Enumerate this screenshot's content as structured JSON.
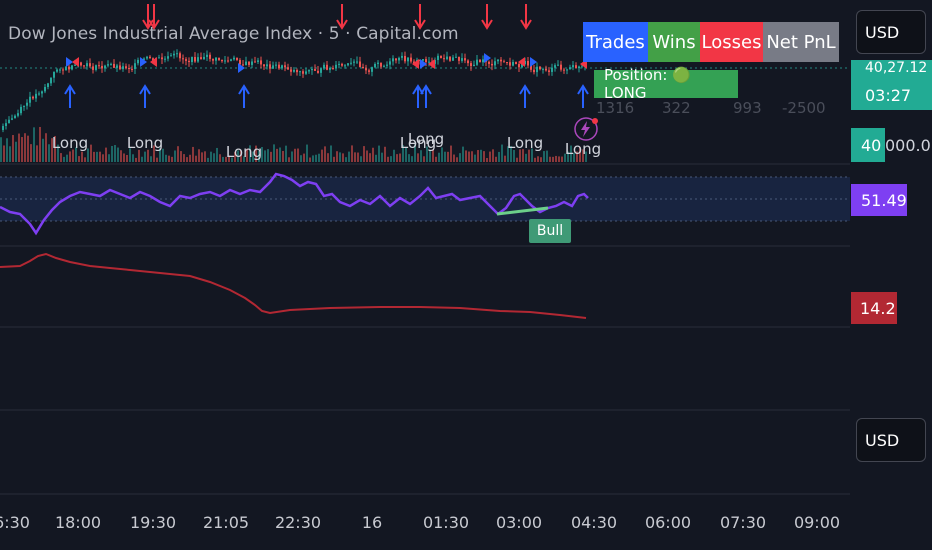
{
  "header": {
    "title": "Dow Jones Industrial Average Index · 5 · Capital.com"
  },
  "stats_table": {
    "headers": [
      {
        "label": "Trades",
        "color": "#2962ff"
      },
      {
        "label": "Wins",
        "color": "#43a047"
      },
      {
        "label": "Losses",
        "color": "#f23645"
      },
      {
        "label": "Net PnL",
        "color": "#787b86"
      }
    ],
    "values": [
      "1316",
      "322",
      "993",
      "-2500"
    ],
    "position_label": "Position: 🟢 LONG"
  },
  "price_scale": {
    "currency_top": "USD",
    "currency_bottom": "USD",
    "price_partial": "40,27.12",
    "countdown": "03:27",
    "volume_value": "40",
    "volume_suffix": "000.0",
    "rsi_value": "51.49",
    "lower_value": "14.2"
  },
  "signal_labels": [
    "Long",
    "Long",
    "Long",
    "Long",
    "Long",
    "Long",
    "Long",
    "Long"
  ],
  "divergence_label": "Bull",
  "time_axis": [
    "6:30",
    "18:00",
    "19:30",
    "21:05",
    "22:30",
    "16",
    "01:30",
    "03:00",
    "04:30",
    "06:00",
    "07:30",
    "09:00"
  ],
  "colors": {
    "background": "#131722",
    "up": "#26a69a",
    "down": "#ef5350",
    "rsi_line": "#7e3ff2",
    "lower_line": "#b22833",
    "signal_up": "#2962ff",
    "signal_down": "#f23645"
  },
  "icons": [
    "lightning-icon",
    "green-circle-icon"
  ]
}
